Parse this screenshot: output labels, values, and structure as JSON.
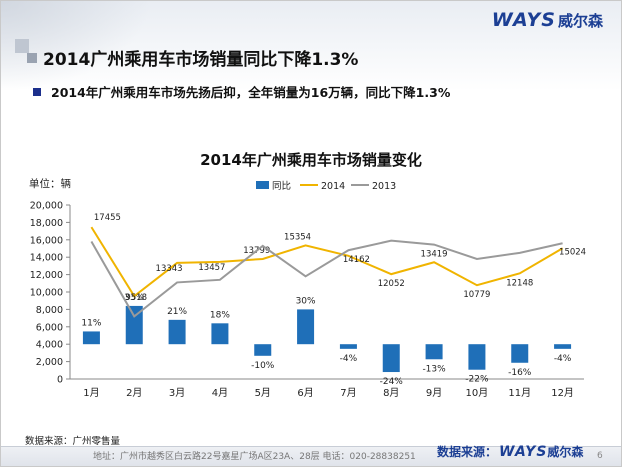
{
  "brand": {
    "logo_text": "WAYS",
    "logo_cn": "威尔森"
  },
  "slide_title": "2014广州乘用车市场销量同比下降1.3%",
  "bullet": "2014年广州乘用车市场先扬后抑，全年销量为16万辆，同比下降1.3%",
  "unit_label": "单位：辆",
  "source_left": "数据来源：广州零售量",
  "footer": {
    "address": "地址：广州市越秀区白云路22号嘉星广场A区23A、28层   电话：020-28838251",
    "source_label": "数据来源：",
    "source_brand": "WAYS",
    "source_cn": "威尔森",
    "page": "6"
  },
  "chart_data": {
    "type": "bar",
    "title": "2014年广州乘用车市场销量变化",
    "categories": [
      "1月",
      "2月",
      "3月",
      "4月",
      "5月",
      "6月",
      "7月",
      "8月",
      "9月",
      "10月",
      "11月",
      "12月"
    ],
    "ylim": [
      0,
      20000
    ],
    "yticks": [
      "0",
      "2,000",
      "4,000",
      "6,000",
      "8,000",
      "10,000",
      "12,000",
      "14,000",
      "16,000",
      "18,000",
      "20,000"
    ],
    "legend_position": "top",
    "grid": false,
    "yoy": {
      "name": "同比",
      "type": "bar",
      "color": "#1f6fb8",
      "values": [
        11,
        33,
        21,
        18,
        -10,
        30,
        -4,
        -24,
        -13,
        -22,
        -16,
        -4
      ],
      "labels": [
        "11%",
        "33%",
        "21%",
        "18%",
        "-10%",
        "30%",
        "-4%",
        "-24%",
        "-13%",
        "-22%",
        "-16%",
        "-4%"
      ],
      "baseline": 4000,
      "units_per_percent": 133.33
    },
    "series": [
      {
        "name": "2014",
        "type": "line",
        "color": "#f0b400",
        "values": [
          17455,
          9518,
          13343,
          13457,
          13799,
          15354,
          14162,
          12052,
          13419,
          10779,
          12148,
          15024
        ],
        "labels": [
          "17455",
          "9518",
          "13343",
          "13457",
          "13799",
          "15354",
          "14162",
          "12052",
          "13419",
          "10779",
          "12148",
          "15024"
        ]
      },
      {
        "name": "2013",
        "type": "line",
        "color": "#9a9a9a",
        "values": [
          15800,
          7200,
          11100,
          11400,
          15300,
          11800,
          14800,
          15900,
          15450,
          13800,
          14500,
          15600
        ]
      }
    ]
  }
}
